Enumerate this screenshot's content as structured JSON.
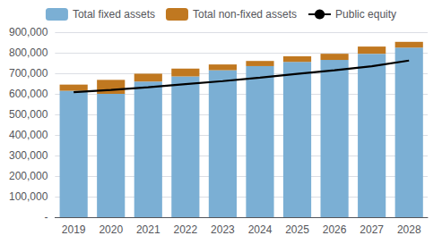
{
  "chart_data": {
    "type": "bar",
    "categories": [
      "2019",
      "2020",
      "2021",
      "2022",
      "2023",
      "2024",
      "2025",
      "2026",
      "2027",
      "2028"
    ],
    "stacked": true,
    "series": [
      {
        "name": "Total fixed assets",
        "color": "#7bafd4",
        "values": [
          615000,
          600000,
          660000,
          685000,
          715000,
          735000,
          755000,
          765000,
          795000,
          825000
        ]
      },
      {
        "name": "Total non-fixed assets",
        "color": "#c07820",
        "values": [
          30000,
          68000,
          38000,
          38000,
          28000,
          25000,
          28000,
          30000,
          35000,
          28000
        ]
      },
      {
        "name": "Public equity",
        "type": "line",
        "color": "#000000",
        "values": [
          608000,
          619000,
          632000,
          647000,
          662000,
          679000,
          697000,
          715000,
          734000,
          762000
        ]
      }
    ],
    "ylim": [
      0,
      900000
    ],
    "yticks": [
      {
        "value": 0,
        "label": "-"
      },
      {
        "value": 100000,
        "label": "100,000"
      },
      {
        "value": 200000,
        "label": "200,000"
      },
      {
        "value": 300000,
        "label": "300,000"
      },
      {
        "value": 400000,
        "label": "400,000"
      },
      {
        "value": 500000,
        "label": "500,000"
      },
      {
        "value": 600000,
        "label": "600,000"
      },
      {
        "value": 700000,
        "label": "700,000"
      },
      {
        "value": 800000,
        "label": "800,000"
      },
      {
        "value": 900000,
        "label": "900,000"
      }
    ],
    "grid": true,
    "legend": "top"
  }
}
